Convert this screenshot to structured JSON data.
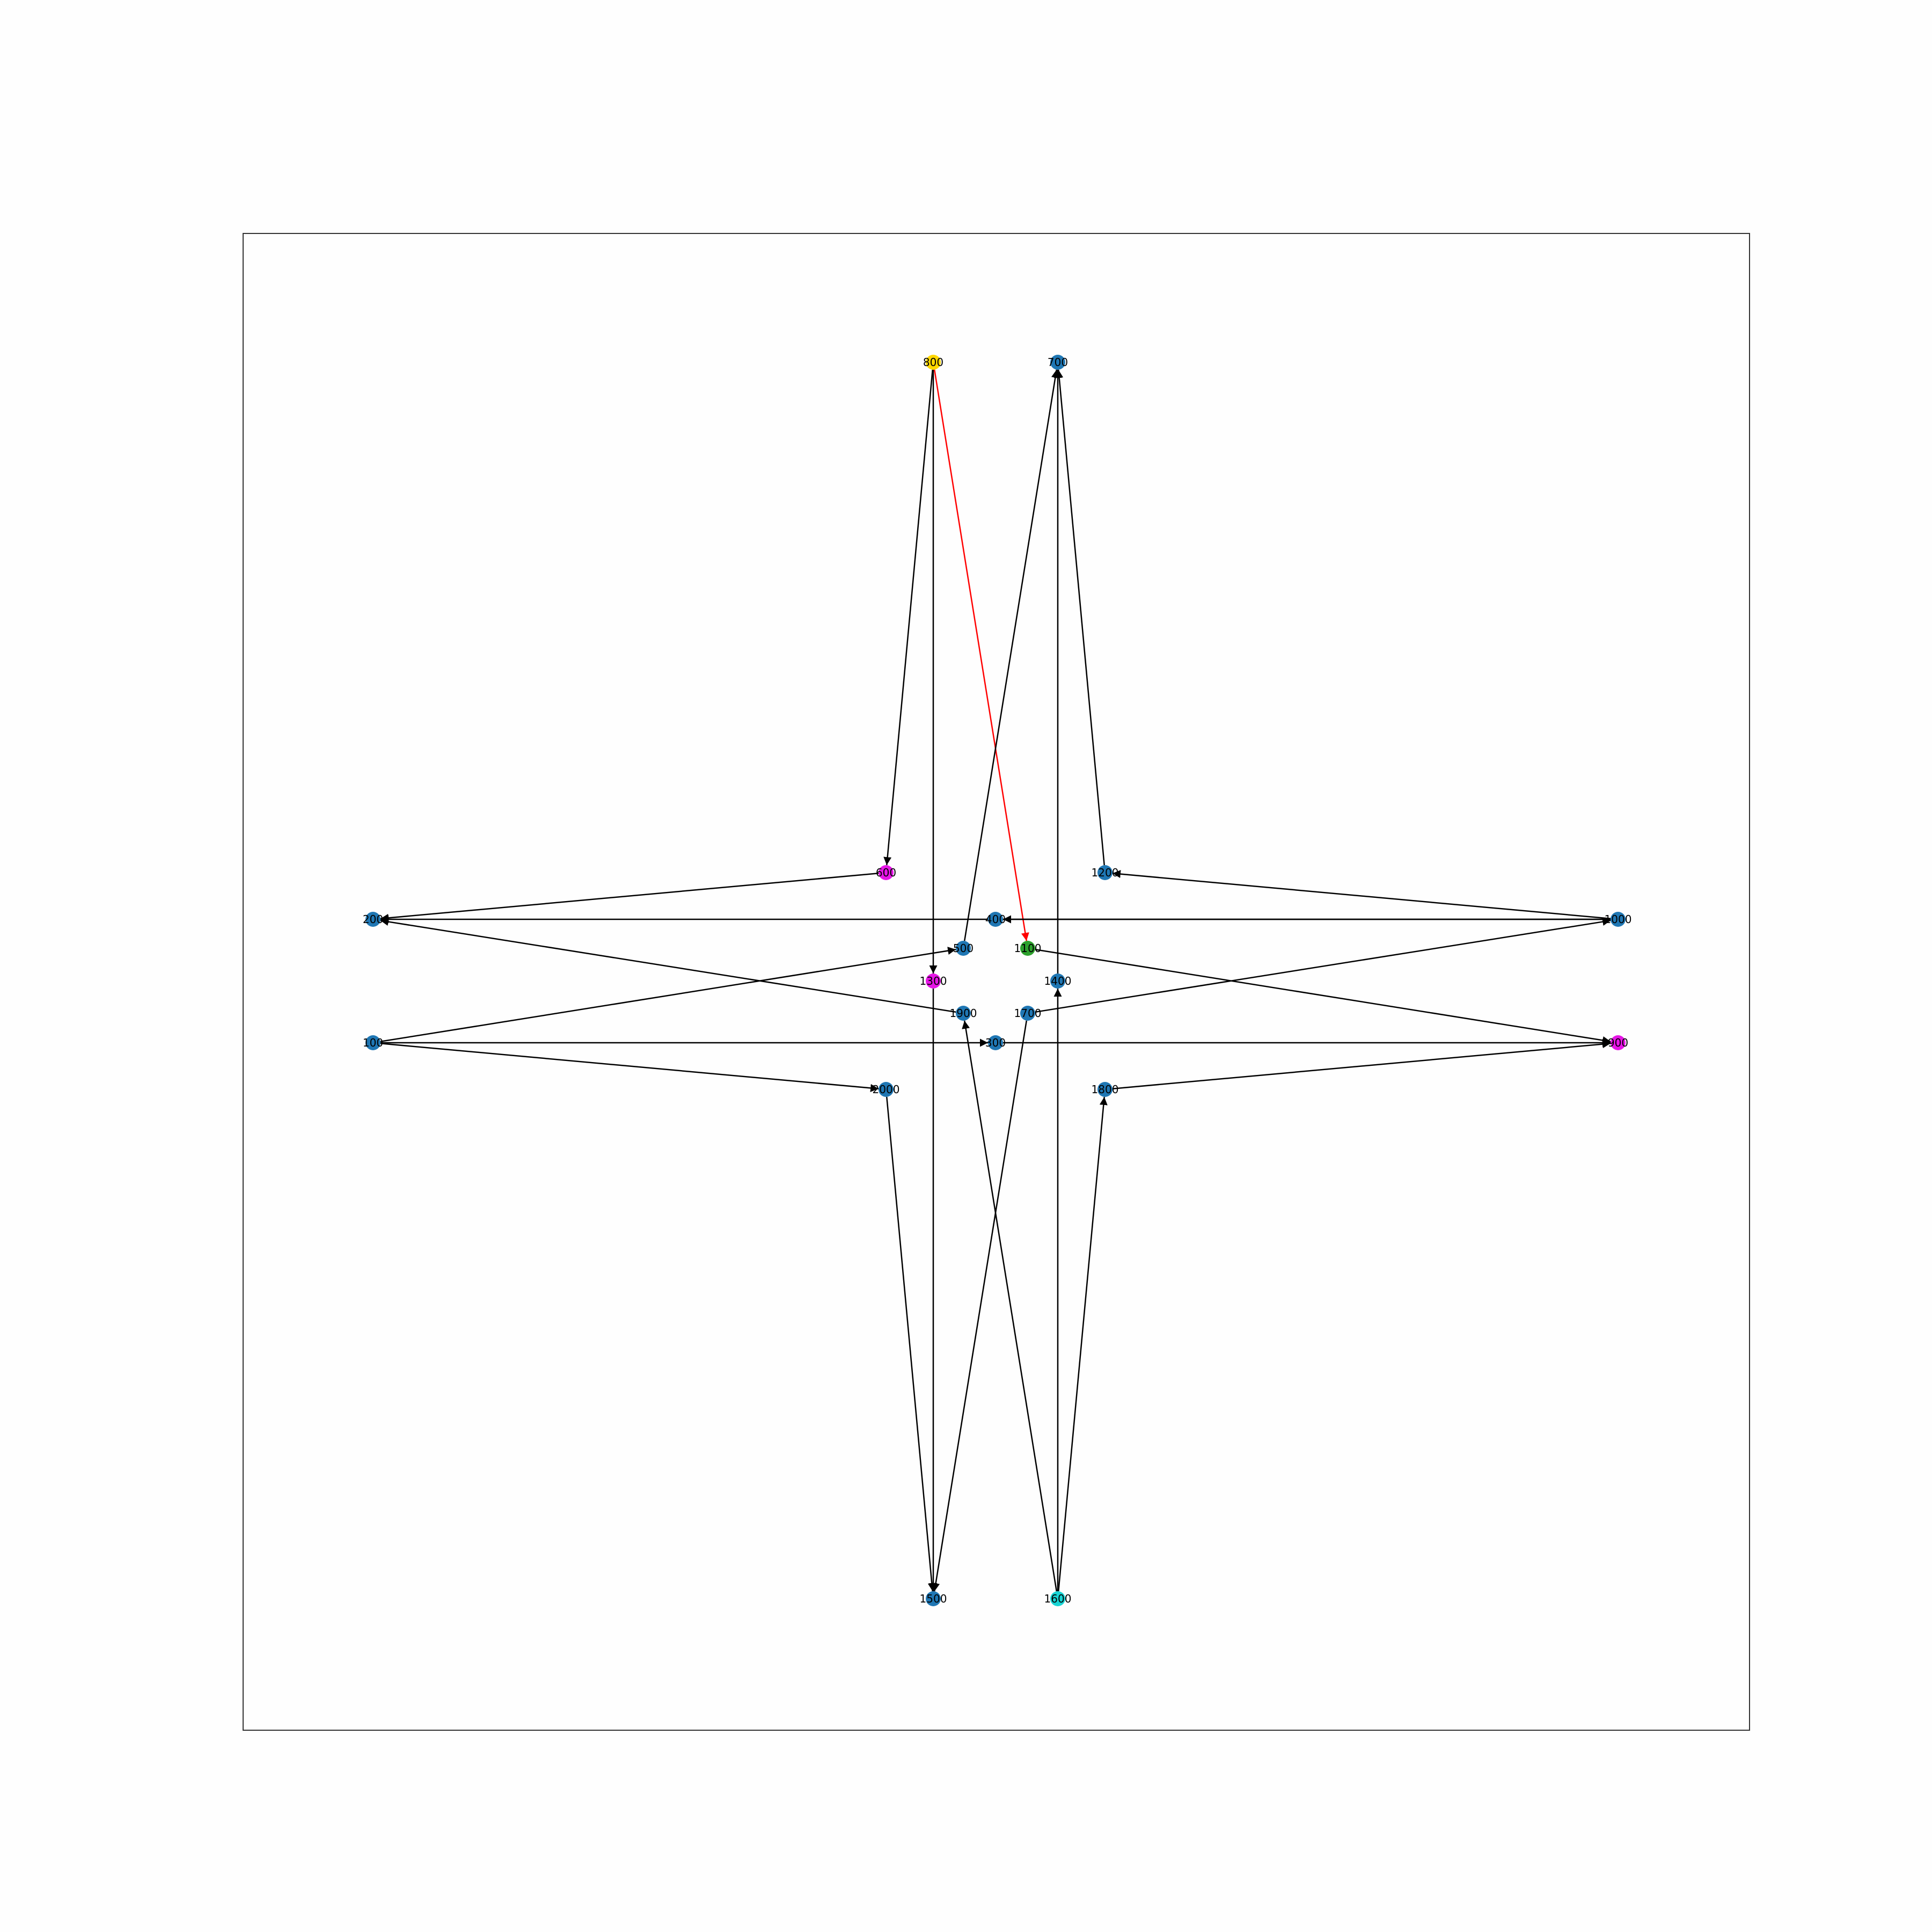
{
  "graph": {
    "colors": {
      "default": "#1f77b4",
      "edge": "#000000",
      "highlight_edge": "#ff0000",
      "magenta": "#e615e6",
      "yellow": "#ffd700",
      "green": "#2ca02c",
      "cyan": "#17d4d4"
    },
    "nodes": [
      {
        "id": "100",
        "label": "100",
        "color": "#1f77b4"
      },
      {
        "id": "200",
        "label": "200",
        "color": "#1f77b4"
      },
      {
        "id": "300",
        "label": "300",
        "color": "#1f77b4"
      },
      {
        "id": "400",
        "label": "400",
        "color": "#1f77b4"
      },
      {
        "id": "500",
        "label": "500",
        "color": "#1f77b4"
      },
      {
        "id": "600",
        "label": "600",
        "color": "#e615e6"
      },
      {
        "id": "700",
        "label": "700",
        "color": "#1f77b4"
      },
      {
        "id": "800",
        "label": "800",
        "color": "#ffd700"
      },
      {
        "id": "900",
        "label": "900",
        "color": "#e615e6"
      },
      {
        "id": "1000",
        "label": "1000",
        "color": "#1f77b4"
      },
      {
        "id": "1100",
        "label": "1100",
        "color": "#2ca02c"
      },
      {
        "id": "1200",
        "label": "1200",
        "color": "#1f77b4"
      },
      {
        "id": "1300",
        "label": "1300",
        "color": "#e615e6"
      },
      {
        "id": "1400",
        "label": "1400",
        "color": "#1f77b4"
      },
      {
        "id": "1500",
        "label": "1500",
        "color": "#1f77b4"
      },
      {
        "id": "1600",
        "label": "1600",
        "color": "#17d4d4"
      },
      {
        "id": "1700",
        "label": "1700",
        "color": "#1f77b4"
      },
      {
        "id": "1800",
        "label": "1800",
        "color": "#1f77b4"
      },
      {
        "id": "1900",
        "label": "1900",
        "color": "#1f77b4"
      },
      {
        "id": "2000",
        "label": "2000",
        "color": "#1f77b4"
      }
    ],
    "edges": [
      {
        "from": "800",
        "to": "600"
      },
      {
        "from": "800",
        "to": "1300"
      },
      {
        "from": "800",
        "to": "1100",
        "highlight": true
      },
      {
        "from": "500",
        "to": "700"
      },
      {
        "from": "1400",
        "to": "700"
      },
      {
        "from": "1200",
        "to": "700"
      },
      {
        "from": "600",
        "to": "200"
      },
      {
        "from": "1000",
        "to": "200"
      },
      {
        "from": "1000",
        "to": "400"
      },
      {
        "from": "1900",
        "to": "200"
      },
      {
        "from": "1000",
        "to": "1200"
      },
      {
        "from": "100",
        "to": "500"
      },
      {
        "from": "100",
        "to": "300"
      },
      {
        "from": "100",
        "to": "2000"
      },
      {
        "from": "1100",
        "to": "900"
      },
      {
        "from": "1700",
        "to": "1000"
      },
      {
        "from": "1800",
        "to": "900"
      },
      {
        "from": "300",
        "to": "900"
      },
      {
        "from": "2000",
        "to": "1500"
      },
      {
        "from": "1300",
        "to": "1500"
      },
      {
        "from": "1700",
        "to": "1500"
      },
      {
        "from": "1600",
        "to": "1900"
      },
      {
        "from": "1600",
        "to": "1400"
      },
      {
        "from": "1600",
        "to": "1800"
      }
    ]
  }
}
